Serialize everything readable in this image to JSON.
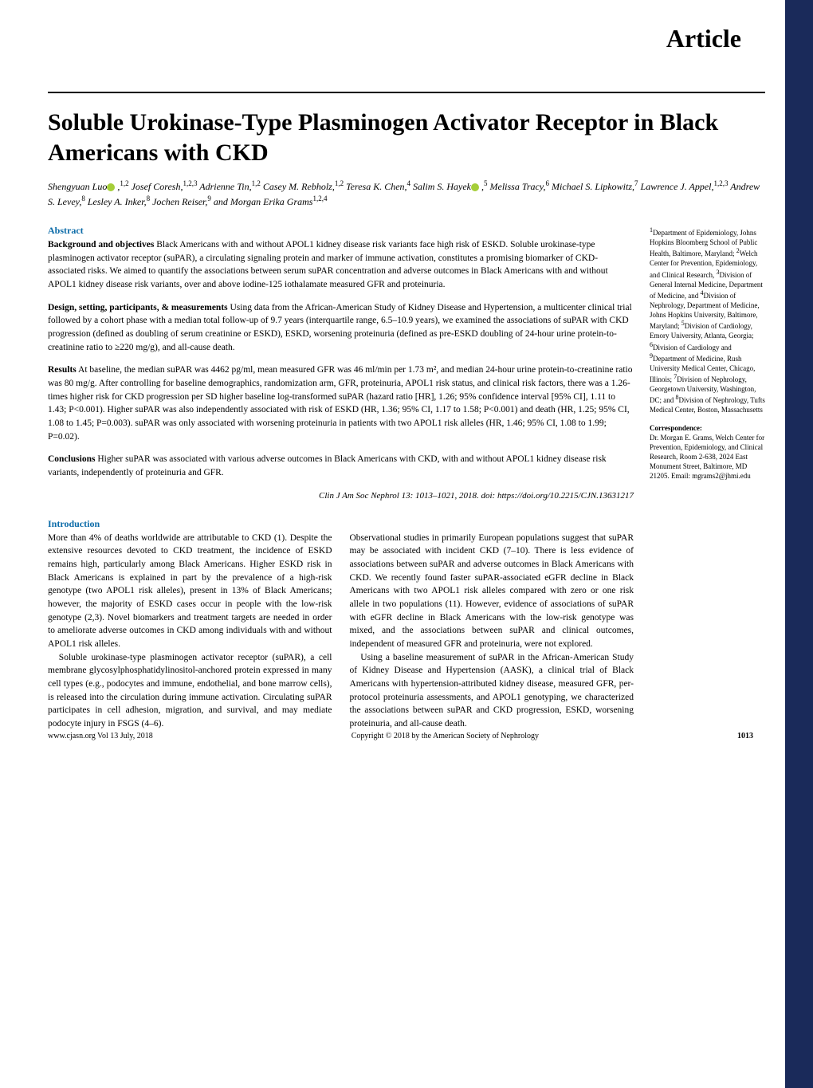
{
  "header": {
    "article_label": "Article"
  },
  "title": "Soluble Urokinase-Type Plasminogen Activator Receptor in Black Americans with CKD",
  "authors_html": "Shengyuan Luo|orcid| ,<sup>1,2</sup> Josef Coresh,<sup>1,2,3</sup> Adrienne Tin,<sup>1,2</sup> Casey M. Rebholz,<sup>1,2</sup> Teresa K. Chen,<sup>4</sup> Salim S. Hayek|orcid| ,<sup>5</sup> Melissa Tracy,<sup>6</sup> Michael S. Lipkowitz,<sup>7</sup> Lawrence J. Appel,<sup>1,2,3</sup> Andrew S. Levey,<sup>8</sup> Lesley A. Inker,<sup>8</sup> Jochen Reiser,<sup>9</sup> and Morgan Erika Grams<sup>1,2,4</sup>",
  "abstract": {
    "heading": "Abstract",
    "background_label": "Background and objectives",
    "background": "Black Americans with and without APOL1 kidney disease risk variants face high risk of ESKD. Soluble urokinase-type plasminogen activator receptor (suPAR), a circulating signaling protein and marker of immune activation, constitutes a promising biomarker of CKD-associated risks. We aimed to quantify the associations between serum suPAR concentration and adverse outcomes in Black Americans with and without APOL1 kidney disease risk variants, over and above iodine-125 iothalamate measured GFR and proteinuria.",
    "design_label": "Design, setting, participants, & measurements",
    "design": "Using data from the African-American Study of Kidney Disease and Hypertension, a multicenter clinical trial followed by a cohort phase with a median total follow-up of 9.7 years (interquartile range, 6.5–10.9 years), we examined the associations of suPAR with CKD progression (defined as doubling of serum creatinine or ESKD), ESKD, worsening proteinuria (defined as pre-ESKD doubling of 24-hour urine protein-to-creatinine ratio to ≥220 mg/g), and all-cause death.",
    "results_label": "Results",
    "results": "At baseline, the median suPAR was 4462 pg/ml, mean measured GFR was 46 ml/min per 1.73 m², and median 24-hour urine protein-to-creatinine ratio was 80 mg/g. After controlling for baseline demographics, randomization arm, GFR, proteinuria, APOL1 risk status, and clinical risk factors, there was a 1.26-times higher risk for CKD progression per SD higher baseline log-transformed suPAR (hazard ratio [HR], 1.26; 95% confidence interval [95% CI], 1.11 to 1.43; P<0.001). Higher suPAR was also independently associated with risk of ESKD (HR, 1.36; 95% CI, 1.17 to 1.58; P<0.001) and death (HR, 1.25; 95% CI, 1.08 to 1.45; P=0.003). suPAR was only associated with worsening proteinuria in patients with two APOL1 risk alleles (HR, 1.46; 95% CI, 1.08 to 1.99; P=0.02).",
    "conclusions_label": "Conclusions",
    "conclusions": "Higher suPAR was associated with various adverse outcomes in Black Americans with CKD, with and without APOL1 kidney disease risk variants, independently of proteinuria and GFR."
  },
  "citation": "Clin J Am Soc Nephrol 13: 1013–1021, 2018. doi: https://doi.org/10.2215/CJN.13631217",
  "intro": {
    "heading": "Introduction",
    "p1": "More than 4% of deaths worldwide are attributable to CKD (1). Despite the extensive resources devoted to CKD treatment, the incidence of ESKD remains high, particularly among Black Americans. Higher ESKD risk in Black Americans is explained in part by the prevalence of a high-risk genotype (two APOL1 risk alleles), present in 13% of Black Americans; however, the majority of ESKD cases occur in people with the low-risk genotype (2,3). Novel biomarkers and treatment targets are needed in order to ameliorate adverse outcomes in CKD among individuals with and without APOL1 risk alleles.",
    "p2": "Soluble urokinase-type plasminogen activator receptor (suPAR), a cell membrane glycosylphosphatidylinositol-anchored protein expressed in many cell types (e.g., podocytes and immune, endothelial, and bone marrow cells), is released into the circulation during immune activation. Circulating suPAR participates in cell adhesion, migration, and survival, and may mediate podocyte injury in FSGS (4–6).",
    "p3": "Observational studies in primarily European populations suggest that suPAR may be associated with incident CKD (7–10). There is less evidence of associations between suPAR and adverse outcomes in Black Americans with CKD. We recently found faster suPAR-associated eGFR decline in Black Americans with two APOL1 risk alleles compared with zero or one risk allele in two populations (11). However, evidence of associations of suPAR with eGFR decline in Black Americans with the low-risk genotype was mixed, and the associations between suPAR and clinical outcomes, independent of measured GFR and proteinuria, were not explored.",
    "p4": "Using a baseline measurement of suPAR in the African-American Study of Kidney Disease and Hypertension (AASK), a clinical trial of Black Americans with hypertension-attributed kidney disease, measured GFR, per-protocol proteinuria assessments, and APOL1 genotyping, we characterized the associations between suPAR and CKD progression, ESKD, worsening proteinuria, and all-cause death."
  },
  "affiliations_html": "<sup>1</sup>Department of Epidemiology, Johns Hopkins Bloomberg School of Public Health, Baltimore, Maryland; <sup>2</sup>Welch Center for Prevention, Epidemiology, and Clinical Research, <sup>3</sup>Division of General Internal Medicine, Department of Medicine, and <sup>4</sup>Division of Nephrology, Department of Medicine, Johns Hopkins University, Baltimore, Maryland; <sup>5</sup>Division of Cardiology, Emory University, Atlanta, Georgia; <sup>6</sup>Division of Cardiology and <sup>9</sup>Department of Medicine, Rush University Medical Center, Chicago, Illinois; <sup>7</sup>Division of Nephrology, Georgetown University, Washington, DC; and <sup>8</sup>Division of Nephrology, Tufts Medical Center, Boston, Massachusetts",
  "correspondence": {
    "label": "Correspondence:",
    "text": "Dr. Morgan E. Grams, Welch Center for Prevention, Epidemiology, and Clinical Research, Room 2-638, 2024 East Monument Street, Baltimore, MD 21205. Email: mgrams2@jhmi.edu"
  },
  "footer": {
    "left": "www.cjasn.org Vol 13 July, 2018",
    "center": "Copyright © 2018 by the American Society of Nephrology",
    "page": "1013"
  },
  "colors": {
    "blue_bar": "#1a2a5a",
    "heading_blue": "#0b6ba8",
    "orcid_green": "#a5ce39"
  }
}
